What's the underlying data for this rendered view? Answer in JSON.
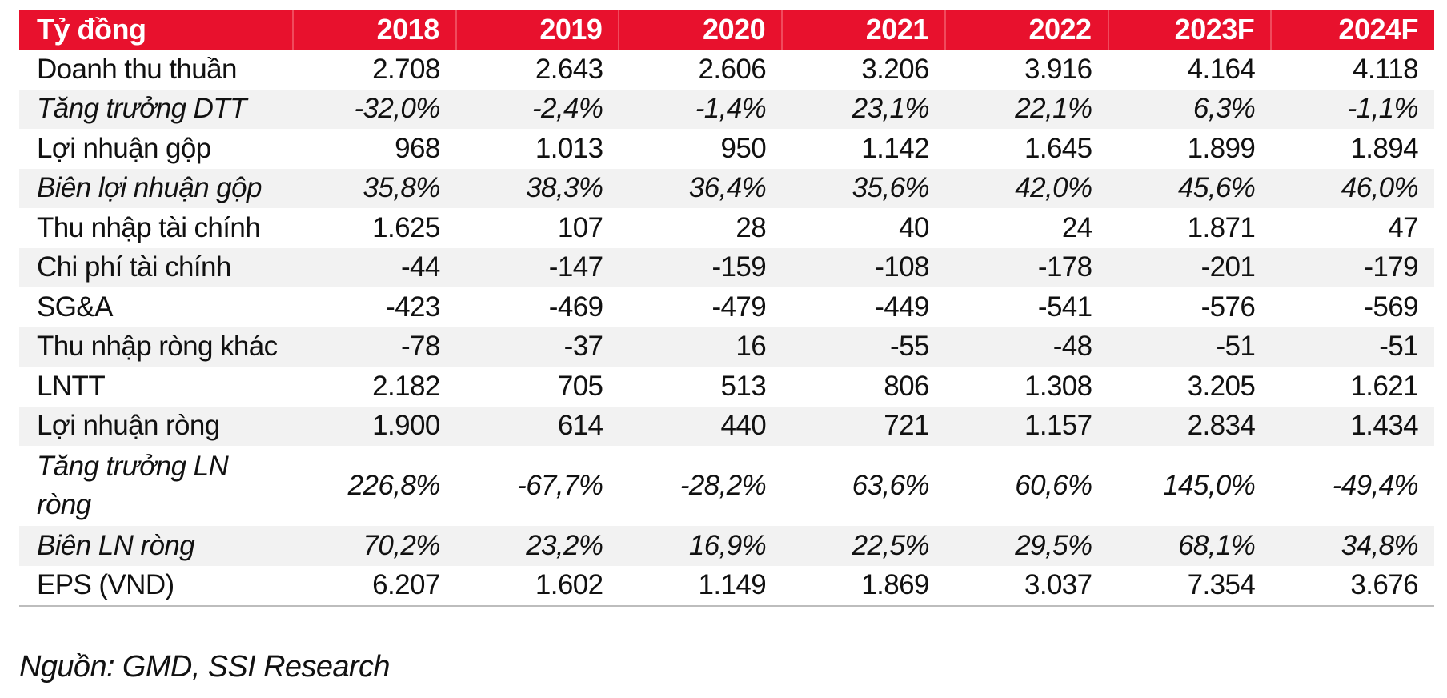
{
  "table": {
    "header": {
      "label": "Tỷ đồng",
      "years": [
        "2018",
        "2019",
        "2020",
        "2021",
        "2022",
        "2023F",
        "2024F"
      ]
    },
    "rows": [
      {
        "label": "Doanh thu thuần",
        "values": [
          "2.708",
          "2.643",
          "2.606",
          "3.206",
          "3.916",
          "4.164",
          "4.118"
        ]
      },
      {
        "label": "Tăng trưởng DTT",
        "values": [
          "-32,0%",
          "-2,4%",
          "-1,4%",
          "23,1%",
          "22,1%",
          "6,3%",
          "-1,1%"
        ]
      },
      {
        "label": "Lợi nhuận gộp",
        "values": [
          "968",
          "1.013",
          "950",
          "1.142",
          "1.645",
          "1.899",
          "1.894"
        ]
      },
      {
        "label": "Biên lợi nhuận gộp",
        "values": [
          "35,8%",
          "38,3%",
          "36,4%",
          "35,6%",
          "42,0%",
          "45,6%",
          "46,0%"
        ]
      },
      {
        "label": "Thu nhập tài chính",
        "values": [
          "1.625",
          "107",
          "28",
          "40",
          "24",
          "1.871",
          "47"
        ]
      },
      {
        "label": "Chi phí tài chính",
        "values": [
          "-44",
          "-147",
          "-159",
          "-108",
          "-178",
          "-201",
          "-179"
        ]
      },
      {
        "label": "SG&A",
        "values": [
          "-423",
          "-469",
          "-479",
          "-449",
          "-541",
          "-576",
          "-569"
        ]
      },
      {
        "label": "Thu nhập ròng khác",
        "values": [
          "-78",
          "-37",
          "16",
          "-55",
          "-48",
          "-51",
          "-51"
        ]
      },
      {
        "label": "LNTT",
        "values": [
          "2.182",
          "705",
          "513",
          "806",
          "1.308",
          "3.205",
          "1.621"
        ]
      },
      {
        "label": "Lợi nhuận ròng",
        "values": [
          "1.900",
          "614",
          "440",
          "721",
          "1.157",
          "2.834",
          "1.434"
        ]
      },
      {
        "label": "Tăng trưởng LN ròng",
        "values": [
          "226,8%",
          "-67,7%",
          "-28,2%",
          "63,6%",
          "60,6%",
          "145,0%",
          "-49,4%"
        ]
      },
      {
        "label": "Biên LN ròng",
        "values": [
          "70,2%",
          "23,2%",
          "16,9%",
          "22,5%",
          "29,5%",
          "68,1%",
          "34,8%"
        ]
      },
      {
        "label": "EPS (VND)",
        "values": [
          "6.207",
          "1.602",
          "1.149",
          "1.869",
          "3.037",
          "7.354",
          "3.676"
        ]
      }
    ]
  },
  "source": "Nguồn: GMD, SSI Research",
  "colors": {
    "header_bg": "#e8112d",
    "header_text": "#ffffff",
    "stripe": "#f2f2f2"
  }
}
